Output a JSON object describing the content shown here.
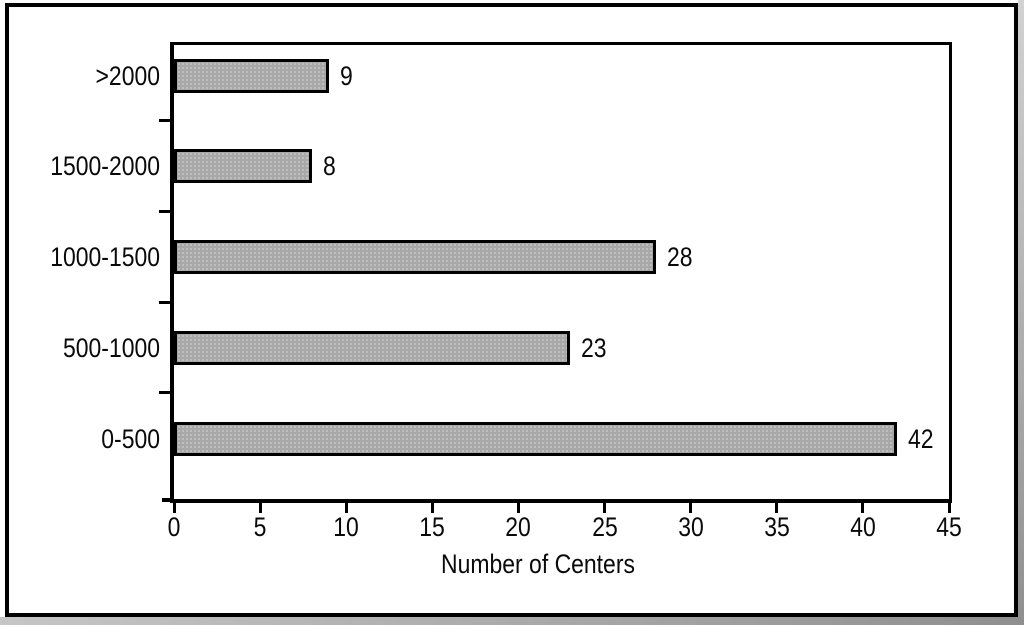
{
  "figure": {
    "background": "#ffffff",
    "frame_color": "#000000"
  },
  "chart_data": {
    "type": "bar",
    "orientation": "horizontal",
    "title": "",
    "categories": [
      ">2000",
      "1500-2000",
      "1000-1500",
      "500-1000",
      "0-500"
    ],
    "values": [
      9,
      8,
      28,
      23,
      42
    ],
    "bar_labels": [
      "9",
      "8",
      "28",
      "23",
      "42"
    ],
    "xlabel": "Number of Centers",
    "ylabel": "",
    "xlim": [
      0,
      45
    ],
    "xticks": [
      0,
      5,
      10,
      15,
      20,
      25,
      30,
      35,
      40,
      45
    ],
    "grid": false,
    "legend_position": "none",
    "colors": {
      "bar_fill": "#a8a8a8",
      "bar_dot": "#c4c4c4",
      "bar_border": "#000000",
      "axis": "#000000",
      "text": "#0a0a0a"
    }
  }
}
